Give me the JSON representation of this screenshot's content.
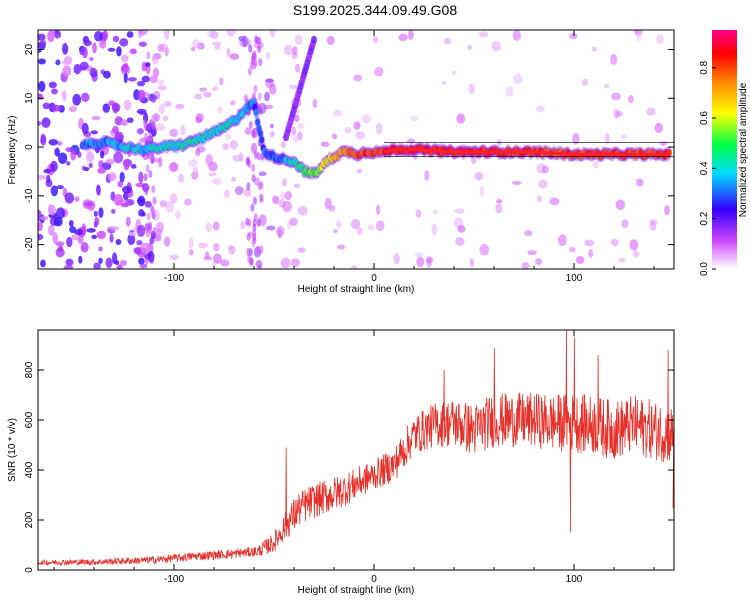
{
  "title": "S199.2025.344.09.49.G08",
  "colors": {
    "snr_line": "#e8302a",
    "ridge": "#ff2020",
    "frame": "#000000"
  },
  "chart_data": [
    {
      "type": "heatmap",
      "xlabel": "Height of straight line (km)",
      "ylabel": "Frequency (Hz)",
      "xlim": [
        -168,
        150
      ],
      "ylim": [
        -25,
        24
      ],
      "x_ticks": [
        -100,
        0,
        100
      ],
      "y_ticks": [
        20,
        10,
        0,
        -10,
        -20
      ],
      "colorbar": {
        "label": "Normalized spectral amplitude",
        "range": [
          0,
          0.95
        ],
        "ticks": [
          0.0,
          0.2,
          0.4,
          0.6,
          0.8
        ],
        "colormap": [
          "#ffffff",
          "#cc44ff",
          "#3300ff",
          "#00ddff",
          "#00ff44",
          "#ffff00",
          "#ff8800",
          "#ff0000",
          "#ff0088"
        ]
      },
      "ridge": {
        "x": [
          -145,
          -135,
          -125,
          -115,
          -105,
          -95,
          -85,
          -75,
          -68,
          -64,
          -60,
          -55,
          -50,
          -45,
          -40,
          -36,
          -32,
          -28,
          -24,
          -20,
          -16,
          -12,
          -8,
          -4,
          0,
          5,
          10,
          20,
          40,
          60,
          80,
          100,
          120,
          148
        ],
        "y": [
          0.5,
          1,
          0,
          -0.5,
          0,
          0.5,
          2,
          4,
          6,
          8,
          9,
          -1,
          -2,
          -2.5,
          -3,
          -4.5,
          -5.5,
          -5,
          -3,
          -2,
          -1,
          -1,
          -1.5,
          -1,
          -1,
          -1,
          -0.5,
          -0.5,
          -1,
          -1,
          -1,
          -1.5,
          -1.5,
          -1.5
        ],
        "strength": [
          0.35,
          0.35,
          0.4,
          0.4,
          0.45,
          0.45,
          0.45,
          0.45,
          0.4,
          0.35,
          0.3,
          0.3,
          0.3,
          0.35,
          0.45,
          0.5,
          0.55,
          0.6,
          0.65,
          0.7,
          0.75,
          0.8,
          0.82,
          0.85,
          0.85,
          0.88,
          0.9,
          0.9,
          0.9,
          0.88,
          0.85,
          0.85,
          0.85,
          0.85
        ]
      }
    },
    {
      "type": "line",
      "xlabel": "Height of straight line (km)",
      "ylabel": "SNR (10 * v/v)",
      "xlim": [
        -168,
        150
      ],
      "ylim": [
        0,
        960
      ],
      "x_ticks": [
        -100,
        0,
        100
      ],
      "y_ticks": [
        0,
        200,
        400,
        600,
        800
      ],
      "series": [
        {
          "color": "#e8302a",
          "trend": {
            "x": [
              -168,
              -140,
              -110,
              -90,
              -70,
              -58,
              -50,
              -44,
              -38,
              -32,
              -25,
              -18,
              -10,
              0,
              10,
              15,
              20,
              25,
              30,
              40,
              50,
              60,
              70,
              80,
              90,
              100,
              110,
              120,
              130,
              140,
              150
            ],
            "y": [
              30,
              32,
              40,
              55,
              65,
              75,
              110,
              180,
              240,
              270,
              290,
              310,
              340,
              380,
              420,
              480,
              540,
              560,
              580,
              590,
              560,
              600,
              600,
              600,
              590,
              590,
              580,
              560,
              580,
              560,
              540
            ]
          },
          "noise_amplitude": {
            "x": [
              -168,
              -60,
              -50,
              -40,
              -20,
              0,
              20,
              40,
              60,
              80,
              100,
              150
            ],
            "y": [
              10,
              20,
              40,
              70,
              70,
              60,
              80,
              100,
              110,
              110,
              120,
              120
            ]
          },
          "spikes": [
            {
              "x": -44,
              "y": 490
            },
            {
              "x": 35,
              "y": 800
            },
            {
              "x": 60,
              "y": 890
            },
            {
              "x": 96,
              "y": 970
            },
            {
              "x": 100,
              "y": 930
            },
            {
              "x": 98,
              "y": 150
            },
            {
              "x": 112,
              "y": 860
            },
            {
              "x": 147,
              "y": 880
            }
          ]
        }
      ]
    }
  ]
}
